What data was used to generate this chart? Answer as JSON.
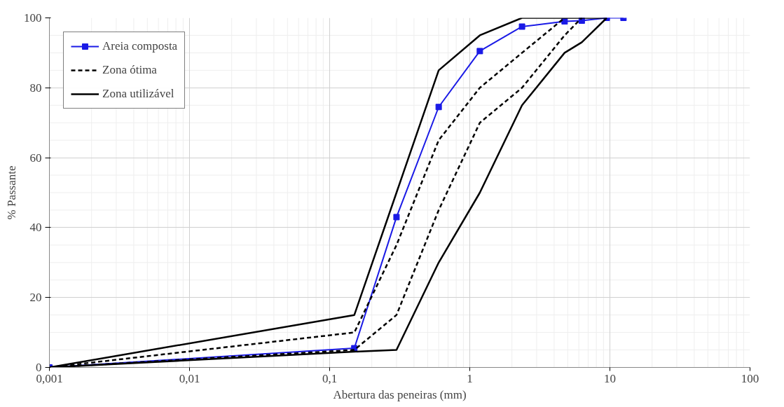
{
  "chart_data": {
    "type": "line",
    "xlabel": "Abertura das peneiras (mm)",
    "ylabel": "% Passante",
    "log": "x",
    "grid": true,
    "legend": "top left",
    "xlim": [
      0.001,
      100
    ],
    "xticks": [
      {
        "value": 0.001,
        "label": "0,001"
      },
      {
        "value": 0.01,
        "label": "0,01"
      },
      {
        "value": 0.1,
        "label": "0,1"
      },
      1,
      10,
      100
    ],
    "ylim": [
      0,
      100
    ],
    "yticks": [
      0,
      20,
      40,
      60,
      80,
      100
    ],
    "series": [
      {
        "name": "Areia composta",
        "color": "#1a1ae6",
        "marker": "square",
        "line_style": "solid",
        "x": [
          0.001,
          0.15,
          0.3,
          0.6,
          1.18,
          2.36,
          4.75,
          6.3,
          9.5,
          12.5
        ],
        "values": [
          0,
          5.5,
          43,
          74.5,
          90.5,
          97.5,
          99,
          99.2,
          100,
          100
        ]
      },
      {
        "name": "Zona ótima",
        "color": "#000000",
        "marker": "none",
        "line_style": "dashed",
        "x": [
          0.001,
          0.15,
          0.3,
          0.6,
          1.18,
          2.36,
          4.75
        ],
        "values": [
          0,
          10,
          35,
          65,
          80,
          90,
          100
        ]
      },
      {
        "color": "#000000",
        "marker": "none",
        "line_style": "dashed",
        "x": [
          0.001,
          0.15,
          0.3,
          0.6,
          1.18,
          2.36,
          4.75,
          6.3
        ],
        "values": [
          0,
          5,
          15,
          45,
          70,
          80,
          95,
          100
        ]
      },
      {
        "name": "Zona utilizável",
        "color": "#000000",
        "marker": "none",
        "line_style": "solid",
        "x": [
          0.001,
          0.15,
          0.3,
          0.6,
          1.18,
          2.36,
          4.75,
          6.3,
          9.5
        ],
        "values": [
          0,
          15,
          50,
          85,
          95,
          100,
          100,
          100,
          100
        ]
      },
      {
        "color": "#000000",
        "marker": "none",
        "line_style": "solid",
        "x": [
          0.001,
          0.15,
          0.3,
          0.6,
          1.18,
          2.36,
          4.75,
          6.3,
          9.5
        ],
        "values": [
          0,
          4.5,
          5,
          30,
          50,
          75,
          90,
          93,
          100
        ]
      }
    ]
  }
}
